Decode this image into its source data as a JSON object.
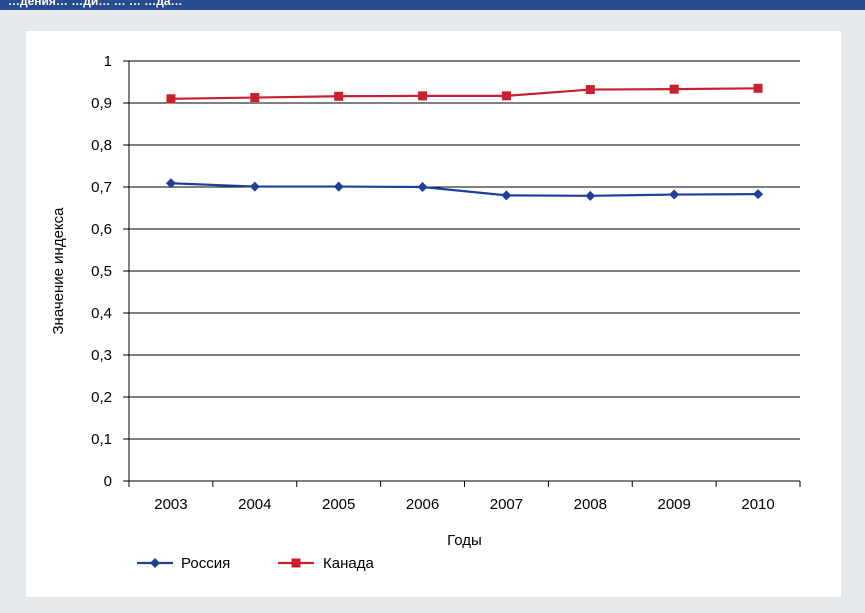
{
  "header": {
    "fragment": "…дения… …ди… … … …да…"
  },
  "chart_data": {
    "type": "line",
    "title": "",
    "xlabel": "Годы",
    "ylabel": "Значение индекса",
    "categories": [
      "2003",
      "2004",
      "2005",
      "2006",
      "2007",
      "2008",
      "2009",
      "2010"
    ],
    "ylim": [
      0,
      1
    ],
    "yticks": [
      0,
      0.1,
      0.2,
      0.3,
      0.4,
      0.5,
      0.6,
      0.7,
      0.8,
      0.9,
      1
    ],
    "ytick_labels": [
      "0",
      "0,1",
      "0,2",
      "0,3",
      "0,4",
      "0,5",
      "0,6",
      "0,7",
      "0,8",
      "0,9",
      "1"
    ],
    "grid": true,
    "legend_position": "bottom-left",
    "series": [
      {
        "name": "Россия",
        "marker": "diamond",
        "color": "#1f3f99",
        "values": [
          0.709,
          0.701,
          0.701,
          0.7,
          0.68,
          0.679,
          0.682,
          0.683
        ]
      },
      {
        "name": "Канада",
        "marker": "square",
        "color": "#c8202e",
        "values": [
          0.91,
          0.913,
          0.916,
          0.917,
          0.917,
          0.932,
          0.933,
          0.935
        ]
      }
    ]
  }
}
